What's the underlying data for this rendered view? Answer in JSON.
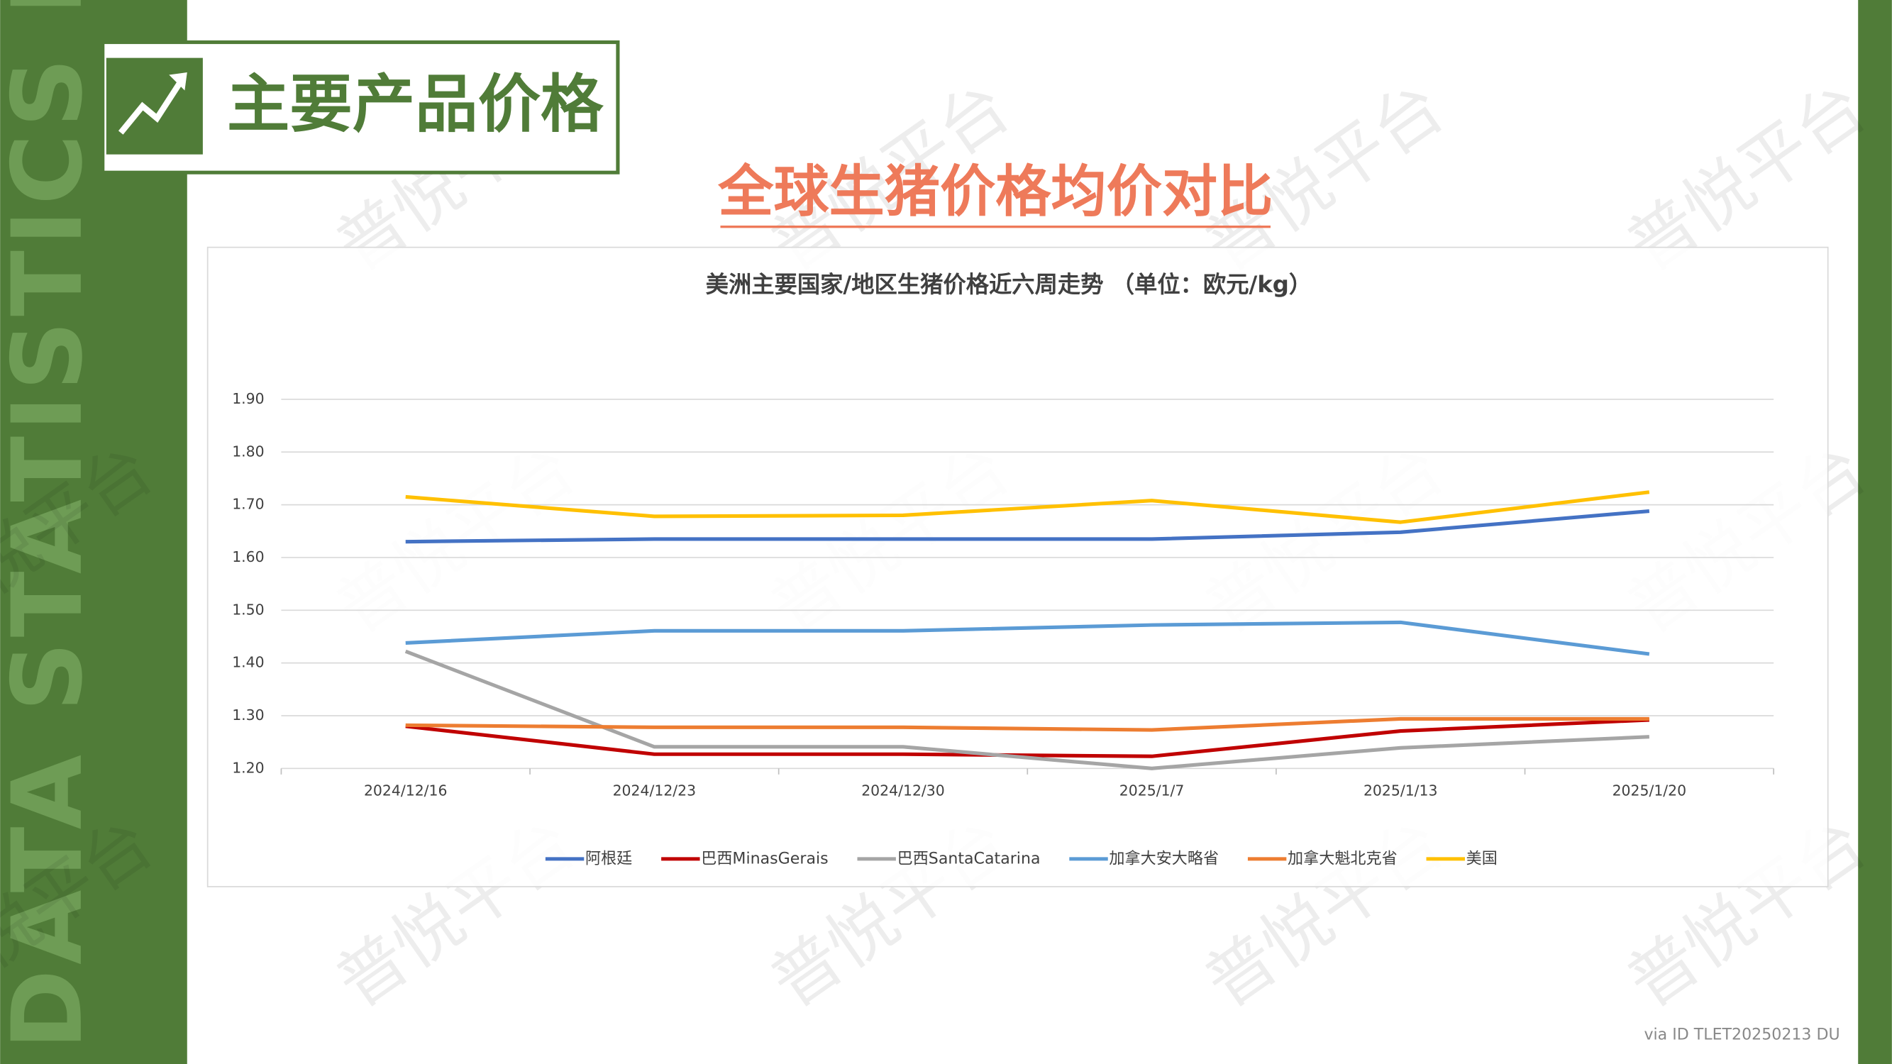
{
  "slide": {
    "section_title": "主要产品价格",
    "heading": "全球生猪价格均价对比",
    "side_text": "DATA STATISTICS REPORT",
    "watermark": "普悦平台",
    "footer": "via ID TLET20250213 DU"
  },
  "chart_data": {
    "type": "line",
    "title": "美洲主要国家/地区生猪价格近六周走势 （单位：欧元/kg）",
    "categories": [
      "2024/12/16",
      "2024/12/23",
      "2024/12/30",
      "2025/1/7",
      "2025/1/13",
      "2025/1/20"
    ],
    "series": [
      {
        "name": "阿根廷",
        "color": "#4472c4",
        "values": [
          1.63,
          1.635,
          1.635,
          1.635,
          1.648,
          1.688
        ]
      },
      {
        "name": "巴西MinasGerais",
        "color": "#c00000",
        "values": [
          1.28,
          1.227,
          1.227,
          1.223,
          1.271,
          1.292
        ]
      },
      {
        "name": "巴西SantaCatarina",
        "color": "#a5a5a5",
        "values": [
          1.422,
          1.241,
          1.241,
          1.2,
          1.239,
          1.26
        ]
      },
      {
        "name": "加拿大安大略省",
        "color": "#5b9bd5",
        "values": [
          1.438,
          1.461,
          1.461,
          1.472,
          1.477,
          1.417
        ]
      },
      {
        "name": "加拿大魁北克省",
        "color": "#ed7d31",
        "values": [
          1.282,
          1.278,
          1.278,
          1.273,
          1.294,
          1.294
        ]
      },
      {
        "name": "美国",
        "color": "#ffc000",
        "values": [
          1.715,
          1.678,
          1.68,
          1.708,
          1.667,
          1.724
        ]
      }
    ],
    "ylim": [
      1.2,
      1.9
    ],
    "yticks": [
      {
        "value": 1.2,
        "label": "1.20"
      },
      {
        "value": 1.3,
        "label": "1.30"
      },
      {
        "value": 1.4,
        "label": "1.40"
      },
      {
        "value": 1.5,
        "label": "1.50"
      },
      {
        "value": 1.6,
        "label": "1.60"
      },
      {
        "value": 1.7,
        "label": "1.70"
      },
      {
        "value": 1.8,
        "label": "1.80"
      },
      {
        "value": 1.9,
        "label": "1.90"
      }
    ],
    "grid": true,
    "legend": "bottom"
  }
}
